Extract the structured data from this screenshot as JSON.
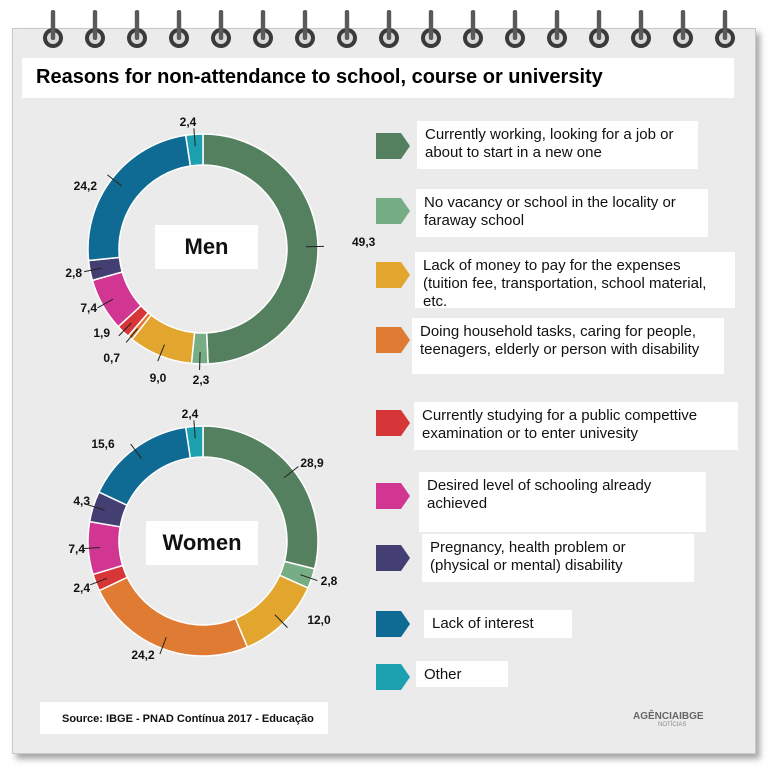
{
  "title": "Reasons for non-attendance to school, course or university",
  "source": "Source: IBGE - PNAD Contínua 2017 - Educação",
  "logo": {
    "text": "AGÊNCIAIBGE",
    "sub": "NOTÍCIAS"
  },
  "colors": {
    "working": "#55805f",
    "no_vacancy": "#77ad85",
    "money": "#e2a52d",
    "household": "#df7b33",
    "studying": "#d63638",
    "achieved": "#d13692",
    "pregnancy": "#433f72",
    "interest": "#0f6a94",
    "other": "#1c9faf"
  },
  "legend": [
    {
      "key": "working",
      "label": "Currently working, looking for a job or about to start in a new one"
    },
    {
      "key": "no_vacancy",
      "label": "No vacancy or school in the locality or faraway school"
    },
    {
      "key": "money",
      "label": "Lack of money to pay for the expenses (tuition fee, transportation, school material, etc."
    },
    {
      "key": "household",
      "label": "Doing household tasks, caring for people, teenagers, elderly or person with disability"
    },
    {
      "key": "studying",
      "label": "Currently studying for a public compettive examination or to enter univesity"
    },
    {
      "key": "achieved",
      "label": "Desired level of schooling already achieved"
    },
    {
      "key": "pregnancy",
      "label": "Pregnancy, health problem or (physical or mental) disability"
    },
    {
      "key": "interest",
      "label": "Lack of interest"
    },
    {
      "key": "other",
      "label": "Other"
    }
  ],
  "chart_data": [
    {
      "type": "pie",
      "title": "Men",
      "categories": [
        "working",
        "no_vacancy",
        "money",
        "household",
        "studying",
        "achieved",
        "pregnancy",
        "interest",
        "other"
      ],
      "values": [
        49.3,
        2.3,
        9.0,
        0.7,
        1.9,
        7.4,
        2.8,
        24.2,
        2.4
      ],
      "labels": [
        "49,3",
        "2,3",
        "9,0",
        "0,7",
        "1,9",
        "7,4",
        "2,8",
        "24,2",
        "2,4"
      ]
    },
    {
      "type": "pie",
      "title": "Women",
      "categories": [
        "working",
        "no_vacancy",
        "money",
        "household",
        "studying",
        "achieved",
        "pregnancy",
        "interest",
        "other"
      ],
      "values": [
        28.9,
        2.8,
        12.0,
        24.2,
        2.4,
        7.4,
        4.3,
        15.6,
        2.4
      ],
      "labels": [
        "28,9",
        "2,8",
        "12,0",
        "24,2",
        "2,4",
        "7,4",
        "4,3",
        "15,6",
        "2,4"
      ]
    }
  ]
}
